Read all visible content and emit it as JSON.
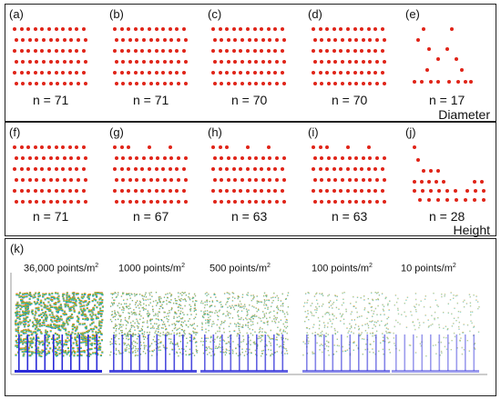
{
  "rows": [
    {
      "title": "Diameter",
      "panels": [
        {
          "label": "(a)",
          "n": "n = 71",
          "pattern": "full-grid"
        },
        {
          "label": "(b)",
          "n": "n = 71",
          "pattern": "full-grid"
        },
        {
          "label": "(c)",
          "n": "n = 70",
          "pattern": "full-grid"
        },
        {
          "label": "(d)",
          "n": "n = 70",
          "pattern": "full-grid"
        },
        {
          "label": "(e)",
          "n": "n = 17",
          "pattern": "sparse"
        }
      ]
    },
    {
      "title": "Height",
      "panels": [
        {
          "label": "(f)",
          "n": "n = 71",
          "pattern": "full-grid"
        },
        {
          "label": "(g)",
          "n": "n = 67",
          "pattern": "gapped-top"
        },
        {
          "label": "(h)",
          "n": "n = 63",
          "pattern": "gapped-top"
        },
        {
          "label": "(i)",
          "n": "n = 63",
          "pattern": "gapped-top"
        },
        {
          "label": "(j)",
          "n": "n = 28",
          "pattern": "triangle"
        }
      ]
    }
  ],
  "point_cloud": {
    "label": "(k)",
    "densities": [
      {
        "value": "36,000 points/m",
        "exp": "2",
        "opacity": 1.0
      },
      {
        "value": "1000 points/m",
        "exp": "2",
        "opacity": 0.75
      },
      {
        "value": "500 points/m",
        "exp": "2",
        "opacity": 0.6
      },
      {
        "value": "100 points/m",
        "exp": "2",
        "opacity": 0.35
      },
      {
        "value": "10 points/m",
        "exp": "2",
        "opacity": 0.18
      }
    ]
  },
  "colors": {
    "dot": "#e02418",
    "border": "#222222",
    "trunk": "#2a2ad8"
  }
}
